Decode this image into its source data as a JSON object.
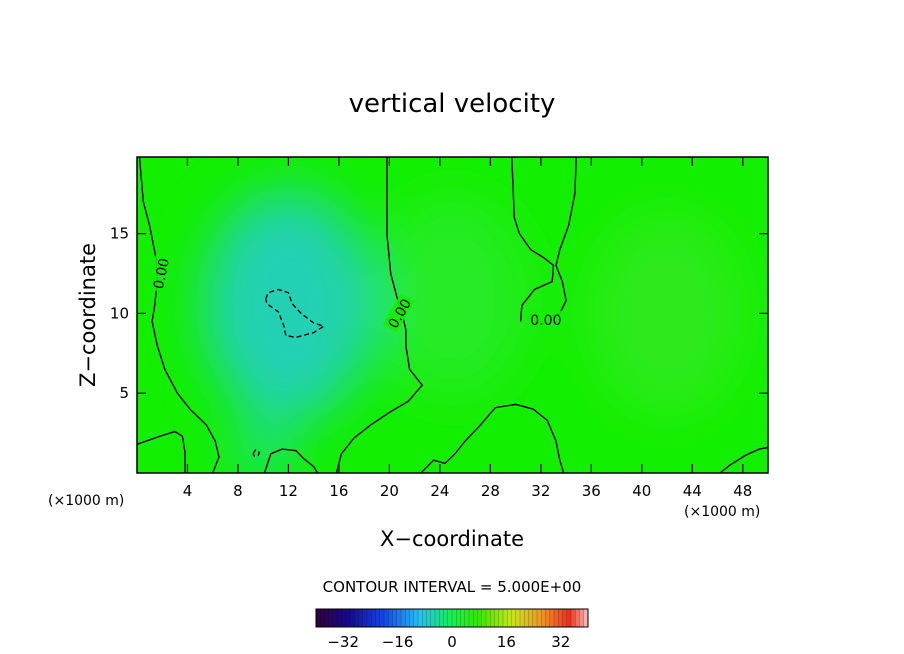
{
  "chart_data": {
    "type": "heatmap",
    "title": "vertical velocity",
    "xlabel": "X−coordinate",
    "ylabel": "Z−coordinate",
    "x_unit_left": "(×1000 m)",
    "x_unit_right": "(×1000 m)",
    "xlim": [
      0,
      50
    ],
    "ylim": [
      0,
      19.8
    ],
    "x_ticks": [
      "4",
      "8",
      "12",
      "16",
      "20",
      "24",
      "28",
      "32",
      "36",
      "40",
      "44",
      "48"
    ],
    "y_ticks": [
      "5",
      "10",
      "15"
    ],
    "contour_interval_text": "CONTOUR INTERVAL = 5.000E+00",
    "contour_labels": [
      "0.00",
      "0.00",
      "0.00"
    ],
    "colorbar": {
      "range": [
        -40,
        40
      ],
      "ticks": [
        "−32",
        "−16",
        "0",
        "16",
        "32"
      ],
      "tick_values": [
        -32,
        -16,
        0,
        16,
        32
      ]
    },
    "field_features": [
      {
        "kind": "min",
        "x": 12,
        "z": 10.5,
        "value": -6
      },
      {
        "kind": "min",
        "x": 10,
        "z": 1.5,
        "value": -3
      },
      {
        "kind": "max",
        "x": 25,
        "z": 11,
        "value": 4
      },
      {
        "kind": "max",
        "x": 42,
        "z": 10,
        "value": 5
      }
    ],
    "contours": [
      {
        "level": 0,
        "style": "solid",
        "points": [
          [
            0.2,
            19.8
          ],
          [
            0.5,
            17
          ],
          [
            1,
            15.5
          ],
          [
            1.5,
            13.5
          ],
          [
            1.6,
            12
          ],
          [
            1.4,
            10.5
          ],
          [
            1.2,
            9.5
          ],
          [
            1.6,
            8
          ],
          [
            2.2,
            6.5
          ],
          [
            3.2,
            5
          ],
          [
            4.2,
            4
          ],
          [
            5.5,
            3
          ],
          [
            6.2,
            2
          ],
          [
            6.5,
            1
          ],
          [
            6,
            0
          ]
        ]
      },
      {
        "level": 0,
        "style": "solid",
        "points": [
          [
            19.8,
            19.8
          ],
          [
            19.8,
            15
          ],
          [
            20.1,
            12.5
          ],
          [
            20.6,
            11
          ],
          [
            21,
            10
          ],
          [
            21.3,
            9
          ],
          [
            21.3,
            8
          ],
          [
            21.6,
            6.5
          ],
          [
            22.6,
            5.5
          ],
          [
            21.5,
            4.5
          ],
          [
            20,
            3.8
          ],
          [
            18.5,
            3
          ],
          [
            17.2,
            2.2
          ],
          [
            16.2,
            1.2
          ],
          [
            15.8,
            0
          ]
        ]
      },
      {
        "level": 0,
        "style": "solid",
        "points": [
          [
            29.7,
            19.8
          ],
          [
            29.9,
            16
          ],
          [
            30.3,
            15
          ],
          [
            31.2,
            14
          ],
          [
            32.2,
            13.5
          ],
          [
            33,
            13
          ],
          [
            32.9,
            12
          ],
          [
            31.5,
            11.5
          ],
          [
            30.5,
            10.5
          ],
          [
            30.4,
            9.5
          ]
        ]
      },
      {
        "level": 0,
        "style": "solid",
        "points": [
          [
            34.8,
            19.8
          ],
          [
            34.7,
            17.5
          ],
          [
            34.2,
            15.5
          ],
          [
            33.5,
            14
          ],
          [
            33.2,
            13
          ],
          [
            33.7,
            12
          ],
          [
            34,
            10.8
          ],
          [
            33.5,
            10
          ],
          [
            32.8,
            9.8
          ]
        ]
      },
      {
        "level": 0,
        "style": "solid",
        "points": [
          [
            22.5,
            0
          ],
          [
            23.5,
            0.8
          ],
          [
            24.4,
            0.6
          ],
          [
            25.2,
            1.2
          ],
          [
            26,
            2
          ],
          [
            27.2,
            3
          ],
          [
            28.4,
            4.1
          ],
          [
            30,
            4.3
          ],
          [
            31.4,
            4
          ],
          [
            32.5,
            3.3
          ],
          [
            33.2,
            2
          ],
          [
            33.5,
            0.8
          ],
          [
            33.8,
            0
          ]
        ]
      },
      {
        "level": 0,
        "style": "solid",
        "points": [
          [
            0,
            1.8
          ],
          [
            1.8,
            2.3
          ],
          [
            3,
            2.6
          ],
          [
            3.6,
            2.3
          ],
          [
            3.8,
            1.3
          ],
          [
            3.8,
            0
          ]
        ]
      },
      {
        "level": 0,
        "style": "solid",
        "points": [
          [
            10.1,
            0
          ],
          [
            10.6,
            1.2
          ],
          [
            11.5,
            1.5
          ],
          [
            12.6,
            1.4
          ],
          [
            13.2,
            0.9
          ],
          [
            14,
            0.4
          ],
          [
            14.3,
            0
          ]
        ]
      },
      {
        "level": 0,
        "style": "solid",
        "points": [
          [
            46.2,
            0
          ],
          [
            47,
            0.5
          ],
          [
            48.2,
            1.1
          ],
          [
            49.3,
            1.5
          ],
          [
            50,
            1.6
          ]
        ]
      },
      {
        "level": -5,
        "style": "dashed",
        "points": [
          [
            10.2,
            10.9
          ],
          [
            10.4,
            11.3
          ],
          [
            11.2,
            11.5
          ],
          [
            12,
            11.3
          ],
          [
            12.3,
            10.6
          ],
          [
            13,
            10
          ],
          [
            14,
            9.4
          ],
          [
            14.8,
            9.2
          ],
          [
            14,
            8.8
          ],
          [
            12.6,
            8.5
          ],
          [
            11.8,
            8.6
          ],
          [
            11.6,
            9.3
          ],
          [
            11.2,
            10.1
          ],
          [
            10.3,
            10.6
          ],
          [
            10.2,
            10.9
          ]
        ]
      },
      {
        "level": -5,
        "style": "dashed",
        "points": [
          [
            9.2,
            1.2
          ],
          [
            9.4,
            1.45
          ],
          [
            9.7,
            1.3
          ],
          [
            9.6,
            1.1
          ],
          [
            9.3,
            1.05
          ],
          [
            9.2,
            1.2
          ]
        ]
      }
    ]
  }
}
